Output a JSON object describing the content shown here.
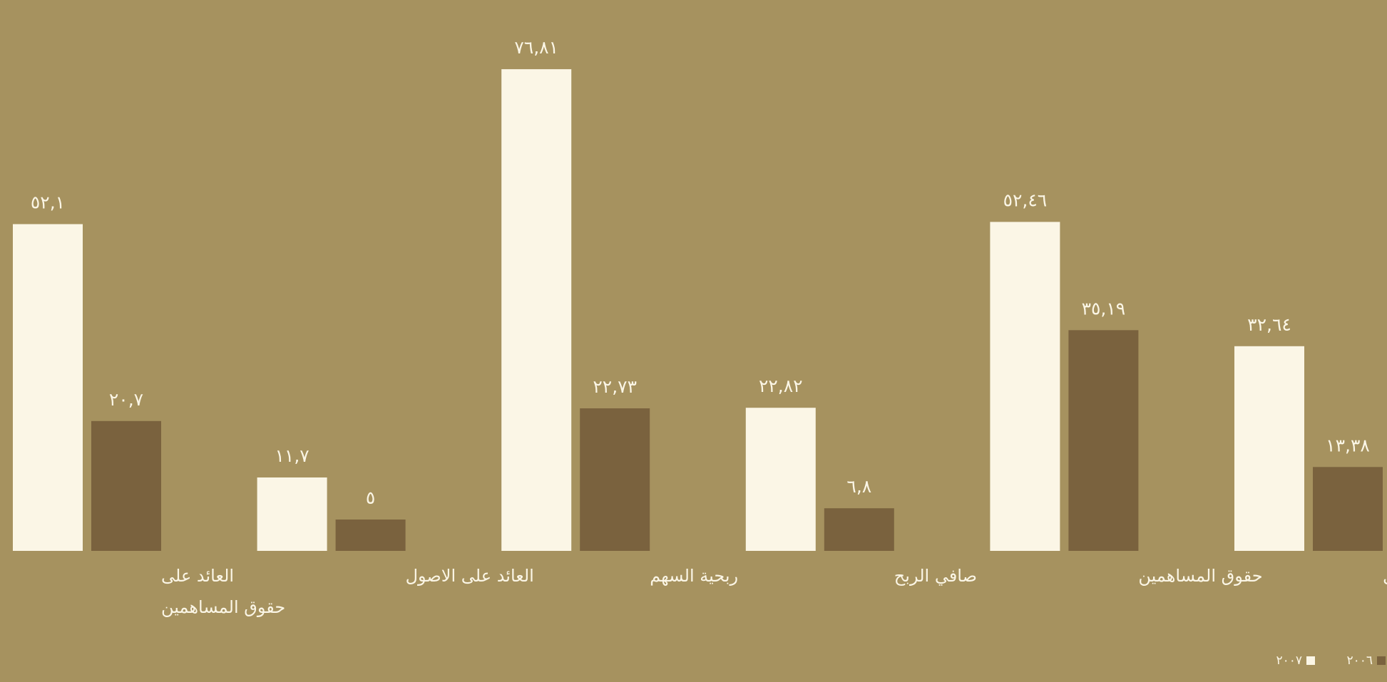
{
  "colors": {
    "background": "#a6925f",
    "light_bar": "#fbf6e6",
    "dark_bar": "#7a623e",
    "text": "#fbf6e6"
  },
  "chart_data": {
    "type": "bar",
    "categories": [
      [
        "العائد على",
        "حقوق المساهمين"
      ],
      [
        "العائد على الاصول"
      ],
      [
        "ربحية السهم"
      ],
      [
        "صافي الربح"
      ],
      [
        "حقوق المساهمين"
      ],
      [
        "مجموع الاصول"
      ]
    ],
    "series": [
      {
        "name": "٢٠٠٧",
        "color": "#fbf6e6",
        "values": [
          52.1,
          11.7,
          76.81,
          22.82,
          52.46,
          32.64
        ],
        "labels": [
          "٥٢,١",
          "١١,٧",
          "٧٦,٨١",
          "٢٢,٨٢",
          "٥٢,٤٦",
          "٣٢,٦٤"
        ]
      },
      {
        "name": "٢٠٠٦",
        "color": "#7a623e",
        "values": [
          20.7,
          5,
          22.73,
          6.8,
          35.19,
          13.38
        ],
        "labels": [
          "٢٠,٧",
          "٥",
          "٢٢,٧٣",
          "٦,٨",
          "٣٥,١٩",
          "١٣,٣٨"
        ]
      }
    ],
    "ylim": [
      0,
      80
    ],
    "grid": false,
    "legend": "bottom-right"
  }
}
